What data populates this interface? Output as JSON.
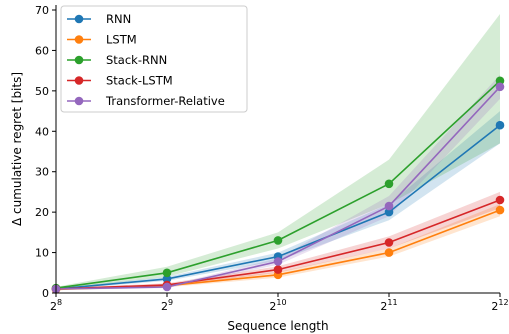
{
  "chart_data": {
    "type": "line",
    "title": "",
    "xlabel": "Sequence length",
    "ylabel": "Δ cumulative regret [bits]",
    "x_scale": "log2",
    "x": [
      256,
      512,
      1024,
      2048,
      4096
    ],
    "x_tick_base": "2",
    "x_tick_exponents": [
      "8",
      "9",
      "10",
      "11",
      "12"
    ],
    "ylim": [
      0,
      70
    ],
    "xlim": [
      256,
      4096
    ],
    "y_ticks": [
      0,
      10,
      20,
      30,
      40,
      50,
      60,
      70
    ],
    "grid": false,
    "legend_position": "top-left",
    "series": [
      {
        "name": "RNN",
        "color": "#1f77b4",
        "values": [
          1.0,
          3.5,
          9.0,
          20.0,
          41.5
        ],
        "lower": [
          0.8,
          3.0,
          8.0,
          18.0,
          37.0
        ],
        "upper": [
          1.2,
          4.0,
          10.0,
          22.0,
          45.0
        ]
      },
      {
        "name": "LSTM",
        "color": "#ff7f0e",
        "values": [
          0.9,
          1.8,
          4.5,
          10.0,
          20.5
        ],
        "lower": [
          0.7,
          1.4,
          3.8,
          9.0,
          19.0
        ],
        "upper": [
          1.1,
          2.2,
          5.2,
          11.0,
          22.0
        ]
      },
      {
        "name": "Stack-RNN",
        "color": "#2ca02c",
        "values": [
          1.2,
          5.0,
          13.0,
          27.0,
          52.5
        ],
        "lower": [
          1.0,
          4.0,
          11.0,
          22.0,
          37.0
        ],
        "upper": [
          1.5,
          6.5,
          15.0,
          33.0,
          69.0
        ]
      },
      {
        "name": "Stack-LSTM",
        "color": "#d62728",
        "values": [
          1.0,
          2.0,
          5.8,
          12.5,
          23.0
        ],
        "lower": [
          0.8,
          1.6,
          5.0,
          11.0,
          21.0
        ],
        "upper": [
          1.2,
          2.4,
          6.6,
          14.0,
          25.0
        ]
      },
      {
        "name": "Transformer-Relative",
        "color": "#9467bd",
        "values": [
          1.0,
          1.5,
          7.8,
          21.5,
          51.0
        ],
        "lower": [
          0.8,
          1.2,
          7.0,
          19.0,
          48.0
        ],
        "upper": [
          1.2,
          1.8,
          8.6,
          24.0,
          54.0
        ]
      }
    ]
  }
}
